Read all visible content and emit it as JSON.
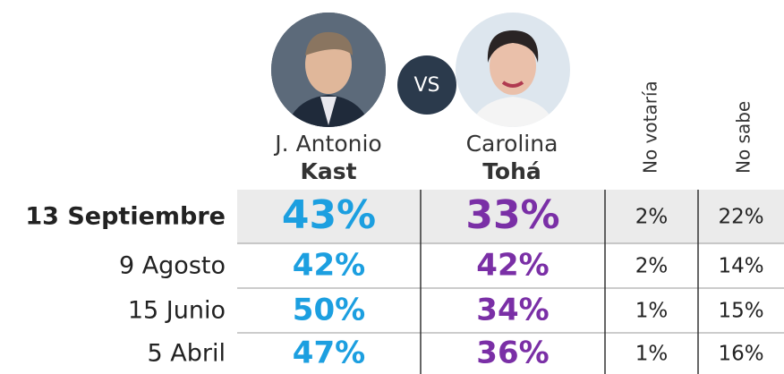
{
  "header": {
    "candidates": [
      {
        "first": "J. Antonio",
        "last": "Kast"
      },
      {
        "first": "Carolina",
        "last": "Tohá"
      }
    ],
    "vs": "VS",
    "others": [
      "No votaría",
      "No sabe"
    ]
  },
  "table": {
    "rows": [
      [
        "13 Septiembre",
        "43%",
        "33%",
        "2%",
        "22%"
      ],
      [
        "9 Agosto",
        "42%",
        "42%",
        "2%",
        "14%"
      ],
      [
        "15 Junio",
        "50%",
        "34%",
        "1%",
        "15%"
      ],
      [
        "5 Abril",
        "47%",
        "36%",
        "1%",
        "16%"
      ]
    ]
  }
}
